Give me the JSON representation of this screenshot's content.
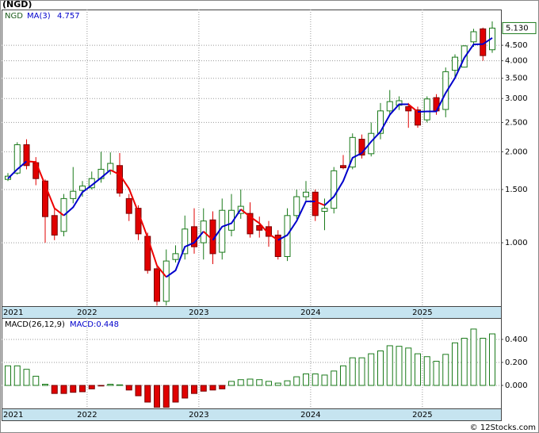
{
  "chart_data": [
    {
      "type": "candlestick",
      "title": "(NGD)",
      "symbol": "NGD",
      "ma_name": "MA(3)",
      "ma_last": 4.757,
      "last_label": "5.130",
      "log": true,
      "grid": true,
      "categories": [
        "2021",
        null,
        null,
        null,
        null,
        null,
        null,
        null,
        null,
        "2022",
        null,
        null,
        null,
        null,
        null,
        null,
        null,
        null,
        null,
        null,
        null,
        "2023",
        null,
        null,
        null,
        null,
        null,
        null,
        null,
        null,
        null,
        null,
        null,
        "2024",
        null,
        null,
        null,
        null,
        null,
        null,
        null,
        null,
        null,
        null,
        null,
        "2025",
        null,
        null,
        null,
        null,
        null,
        null,
        null
      ],
      "open": [
        1.62,
        1.7,
        2.11,
        1.84,
        1.6,
        1.23,
        1.09,
        1.4,
        1.49,
        1.52,
        1.63,
        1.73,
        1.8,
        1.4,
        1.3,
        1.05,
        0.82,
        0.64,
        0.88,
        0.92,
        1.13,
        1.0,
        1.19,
        0.93,
        1.1,
        1.25,
        1.25,
        1.14,
        1.13,
        1.06,
        0.9,
        1.23,
        1.42,
        1.47,
        1.27,
        1.3,
        1.8,
        1.78,
        2.2,
        1.97,
        2.3,
        2.73,
        2.85,
        2.82,
        2.75,
        2.55,
        3.02,
        2.76,
        3.72,
        3.81,
        4.62,
        5.1,
        4.35
      ],
      "high": [
        1.7,
        2.15,
        2.2,
        1.92,
        1.62,
        1.3,
        1.45,
        1.78,
        1.6,
        1.72,
        2.0,
        1.99,
        1.98,
        1.45,
        1.33,
        1.08,
        0.84,
        0.95,
        0.98,
        1.23,
        1.3,
        1.3,
        1.27,
        1.4,
        1.45,
        1.5,
        1.36,
        1.22,
        1.18,
        1.1,
        1.3,
        1.5,
        1.6,
        1.5,
        1.4,
        1.78,
        1.95,
        2.3,
        2.28,
        2.5,
        2.9,
        3.2,
        3.05,
        2.9,
        2.82,
        3.05,
        3.1,
        3.8,
        4.2,
        4.5,
        5.1,
        5.15,
        5.4
      ],
      "low": [
        1.6,
        1.68,
        1.75,
        1.55,
        1.0,
        1.02,
        1.05,
        1.35,
        1.42,
        1.5,
        1.58,
        1.68,
        1.42,
        1.18,
        1.02,
        0.79,
        0.62,
        0.62,
        0.86,
        0.88,
        0.92,
        0.88,
        0.85,
        0.88,
        1.05,
        1.2,
        1.04,
        1.04,
        0.97,
        0.88,
        0.87,
        1.2,
        1.38,
        1.18,
        1.1,
        1.25,
        1.75,
        1.75,
        1.9,
        1.93,
        2.2,
        2.65,
        2.75,
        2.4,
        2.4,
        2.5,
        2.65,
        2.6,
        3.5,
        3.8,
        4.45,
        4.0,
        4.25
      ],
      "close": [
        1.66,
        2.11,
        1.8,
        1.63,
        1.22,
        1.06,
        1.4,
        1.48,
        1.54,
        1.63,
        1.75,
        1.83,
        1.46,
        1.25,
        1.07,
        0.81,
        0.64,
        0.87,
        0.92,
        1.11,
        0.97,
        1.18,
        0.92,
        1.28,
        1.28,
        1.32,
        1.07,
        1.1,
        1.05,
        0.9,
        1.23,
        1.42,
        1.47,
        1.23,
        1.3,
        1.73,
        1.77,
        2.23,
        1.95,
        2.3,
        2.73,
        2.93,
        2.95,
        2.73,
        2.45,
        2.99,
        2.73,
        3.68,
        4.11,
        4.48,
        4.99,
        4.16,
        5.13
      ],
      "ma": {
        "up_color": "#0000cc",
        "down_color": "#ee0000",
        "values": [
          1.63,
          1.75,
          1.86,
          1.85,
          1.55,
          1.3,
          1.23,
          1.31,
          1.47,
          1.55,
          1.64,
          1.74,
          1.68,
          1.51,
          1.26,
          1.04,
          0.84,
          0.77,
          0.81,
          0.97,
          1.0,
          1.09,
          1.02,
          1.13,
          1.16,
          1.29,
          1.22,
          1.16,
          1.07,
          1.02,
          1.06,
          1.18,
          1.37,
          1.37,
          1.33,
          1.42,
          1.6,
          1.91,
          1.98,
          2.16,
          2.33,
          2.65,
          2.87,
          2.87,
          2.71,
          2.72,
          2.72,
          3.13,
          3.51,
          4.09,
          4.53,
          4.54,
          4.76
        ]
      },
      "up_color": "#1a7a1a",
      "down_color": "#e00000",
      "ylim": [
        0.617,
        5.91
      ],
      "yticks": [
        {
          "value": 1,
          "label": "1.000"
        },
        {
          "value": 1.5,
          "label": "1.500"
        },
        {
          "value": 2,
          "label": "2.000"
        },
        {
          "value": 2.5,
          "label": "2.500"
        },
        {
          "value": 3,
          "label": "3.000"
        },
        {
          "value": 3.5,
          "label": "3.500"
        },
        {
          "value": 4,
          "label": "4.000"
        },
        {
          "value": 4.5,
          "label": "4.500"
        }
      ]
    },
    {
      "type": "bar",
      "title": "MACD(26,12,9)",
      "subtitle": "MACD:0.448",
      "grid": true,
      "categories": [
        "2021",
        null,
        null,
        null,
        null,
        null,
        null,
        null,
        null,
        "2022",
        null,
        null,
        null,
        null,
        null,
        null,
        null,
        null,
        null,
        null,
        null,
        "2023",
        null,
        null,
        null,
        null,
        null,
        null,
        null,
        null,
        null,
        null,
        null,
        "2024",
        null,
        null,
        null,
        null,
        null,
        null,
        null,
        null,
        null,
        null,
        null,
        "2025",
        null,
        null,
        null,
        null,
        null,
        null,
        null
      ],
      "values": [
        0.17,
        0.17,
        0.14,
        0.08,
        0.01,
        -0.07,
        -0.07,
        -0.06,
        -0.055,
        -0.03,
        -0.005,
        0.01,
        0.005,
        -0.04,
        -0.09,
        -0.145,
        -0.19,
        -0.19,
        -0.145,
        -0.11,
        -0.07,
        -0.05,
        -0.04,
        -0.03,
        0.035,
        0.05,
        0.055,
        0.05,
        0.035,
        0.02,
        0.04,
        0.075,
        0.1,
        0.1,
        0.09,
        0.125,
        0.17,
        0.24,
        0.24,
        0.275,
        0.3,
        0.345,
        0.34,
        0.325,
        0.275,
        0.25,
        0.21,
        0.27,
        0.37,
        0.41,
        0.49,
        0.41,
        0.448
      ],
      "up_color": "#1a7a1a",
      "down_color": "#e00000",
      "ylim": [
        -0.2,
        0.586
      ],
      "yticks": [
        {
          "value": 0,
          "label": "0.000"
        },
        {
          "value": 0.2,
          "label": "0.200"
        },
        {
          "value": 0.4,
          "label": "0.400"
        }
      ]
    }
  ],
  "footer": "© 12Stocks.com"
}
